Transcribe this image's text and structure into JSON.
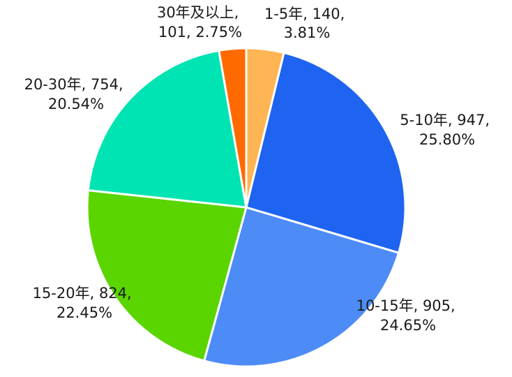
{
  "chart_data": {
    "type": "pie",
    "title": "",
    "start_angle_deg": 0,
    "direction": "clockwise",
    "slices": [
      {
        "name": "1-5年",
        "value": 140,
        "percent": "3.81%",
        "color": "#FFB554",
        "label_line1": "1-5年, 140,",
        "label_line2": "3.81%"
      },
      {
        "name": "5-10年",
        "value": 947,
        "percent": "25.80%",
        "color": "#1E64F0",
        "label_line1": "5-10年, 947,",
        "label_line2": "25.80%"
      },
      {
        "name": "10-15年",
        "value": 905,
        "percent": "24.65%",
        "color": "#4D8CF6",
        "label_line1": "10-15年, 905,",
        "label_line2": "24.65%"
      },
      {
        "name": "15-20年",
        "value": 824,
        "percent": "22.45%",
        "color": "#5AD500",
        "label_line1": "15-20年, 824,",
        "label_line2": "22.45%"
      },
      {
        "name": "20-30年",
        "value": 754,
        "percent": "20.54%",
        "color": "#00E3B2",
        "label_line1": "20-30年, 754,",
        "label_line2": "20.54%"
      },
      {
        "name": "30年及以上",
        "value": 101,
        "percent": "2.75%",
        "color": "#FF6A00",
        "label_line1": "30年及以上,",
        "label_line2": "101, 2.75%"
      }
    ]
  }
}
